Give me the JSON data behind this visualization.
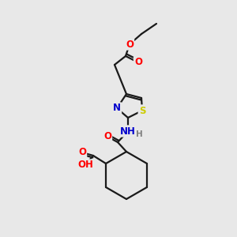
{
  "background_color": "#e8e8e8",
  "bond_color": "#1a1a1a",
  "atom_colors": {
    "O": "#ff0000",
    "N": "#0000cc",
    "S": "#cccc00",
    "H": "#808080",
    "C": "#1a1a1a"
  },
  "font_size_atom": 8.5,
  "fig_size": [
    3.0,
    3.0
  ],
  "dpi": 100
}
